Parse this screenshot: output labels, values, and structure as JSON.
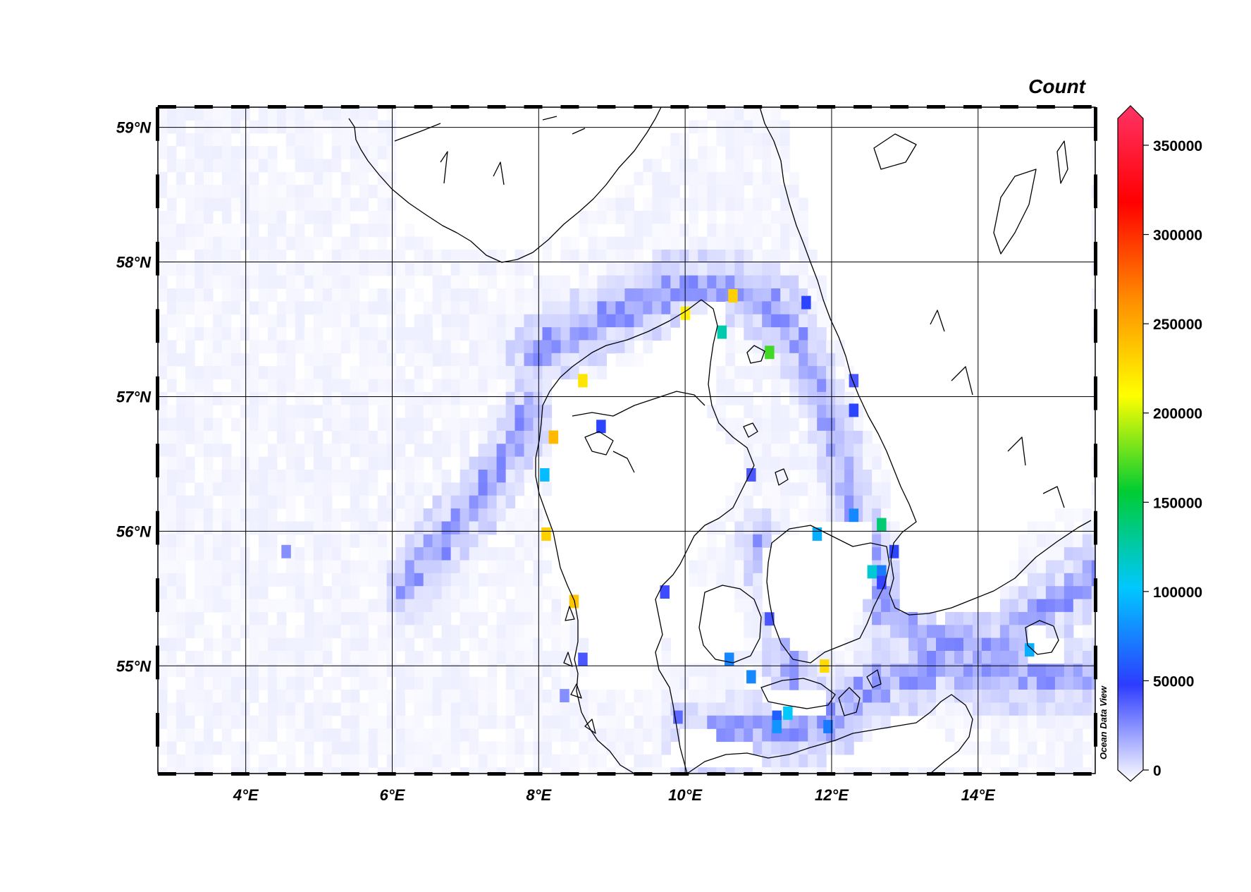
{
  "map": {
    "lon_range": [
      2.8,
      15.6
    ],
    "lat_range": [
      54.2,
      59.15
    ],
    "lon_ticks": [
      4,
      6,
      8,
      10,
      12,
      14
    ],
    "lat_ticks": [
      55,
      56,
      57,
      58,
      59
    ],
    "lon_labels": [
      "4°E",
      "6°E",
      "8°E",
      "10°E",
      "12°E",
      "14°E"
    ],
    "lat_labels": [
      "55°N",
      "56°N",
      "57°N",
      "58°N",
      "59°N"
    ],
    "cell_deg": 0.125,
    "credit": "Ocean Data View"
  },
  "colorbar": {
    "title": "Count",
    "min": 0,
    "max": 365000,
    "tick_values": [
      0,
      50000,
      100000,
      150000,
      200000,
      250000,
      300000,
      350000
    ],
    "tick_labels": [
      "0",
      "50000",
      "100000",
      "150000",
      "200000",
      "250000",
      "300000",
      "350000"
    ],
    "colors": [
      "#ffffff",
      "#2d3cff",
      "#00c8ff",
      "#00cc33",
      "#ffff00",
      "#ff8c00",
      "#ff0000",
      "#ff3366"
    ]
  },
  "hotspots": [
    {
      "lon": 10.0,
      "lat": 57.62,
      "count": 215000
    },
    {
      "lon": 10.65,
      "lat": 57.75,
      "count": 230000
    },
    {
      "lon": 10.5,
      "lat": 57.48,
      "count": 125000
    },
    {
      "lon": 11.15,
      "lat": 57.33,
      "count": 170000
    },
    {
      "lon": 8.6,
      "lat": 57.12,
      "count": 220000
    },
    {
      "lon": 8.2,
      "lat": 56.7,
      "count": 240000
    },
    {
      "lon": 8.85,
      "lat": 56.78,
      "count": 55000
    },
    {
      "lon": 8.08,
      "lat": 56.42,
      "count": 100000
    },
    {
      "lon": 8.1,
      "lat": 55.98,
      "count": 230000
    },
    {
      "lon": 8.48,
      "lat": 55.48,
      "count": 235000
    },
    {
      "lon": 8.6,
      "lat": 55.05,
      "count": 45000
    },
    {
      "lon": 8.35,
      "lat": 54.78,
      "count": 30000
    },
    {
      "lon": 9.72,
      "lat": 55.55,
      "count": 48000
    },
    {
      "lon": 10.9,
      "lat": 56.42,
      "count": 45000
    },
    {
      "lon": 11.65,
      "lat": 57.7,
      "count": 55000
    },
    {
      "lon": 12.3,
      "lat": 57.12,
      "count": 45000
    },
    {
      "lon": 12.3,
      "lat": 56.9,
      "count": 55000
    },
    {
      "lon": 12.3,
      "lat": 56.12,
      "count": 80000
    },
    {
      "lon": 11.8,
      "lat": 55.98,
      "count": 95000
    },
    {
      "lon": 12.68,
      "lat": 56.05,
      "count": 140000
    },
    {
      "lon": 12.85,
      "lat": 55.85,
      "count": 55000
    },
    {
      "lon": 12.55,
      "lat": 55.7,
      "count": 115000
    },
    {
      "lon": 12.68,
      "lat": 55.7,
      "count": 75000
    },
    {
      "lon": 12.68,
      "lat": 55.62,
      "count": 50000
    },
    {
      "lon": 11.15,
      "lat": 55.35,
      "count": 45000
    },
    {
      "lon": 10.6,
      "lat": 55.05,
      "count": 80000
    },
    {
      "lon": 10.9,
      "lat": 54.92,
      "count": 80000
    },
    {
      "lon": 11.9,
      "lat": 55.0,
      "count": 225000
    },
    {
      "lon": 11.4,
      "lat": 54.65,
      "count": 105000
    },
    {
      "lon": 11.25,
      "lat": 54.62,
      "count": 65000
    },
    {
      "lon": 11.25,
      "lat": 54.55,
      "count": 85000
    },
    {
      "lon": 11.95,
      "lat": 54.55,
      "count": 75000
    },
    {
      "lon": 14.7,
      "lat": 55.12,
      "count": 95000
    },
    {
      "lon": 9.9,
      "lat": 54.62,
      "count": 40000
    },
    {
      "lon": 4.55,
      "lat": 55.85,
      "count": 30000
    }
  ]
}
